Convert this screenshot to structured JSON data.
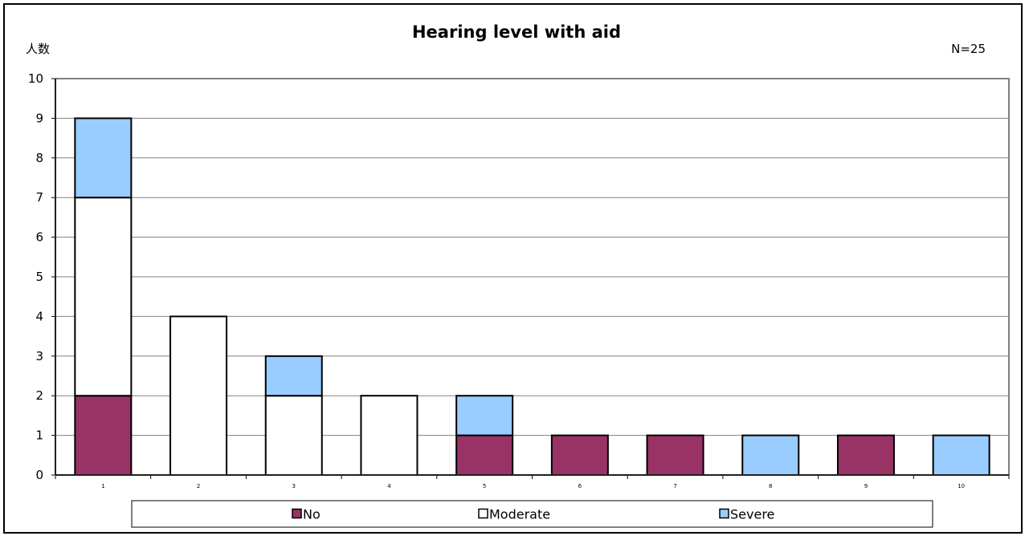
{
  "chart_data": {
    "type": "bar",
    "stacked": true,
    "title": "Hearing level with aid",
    "ylabel": "人数",
    "note": "N=25",
    "categories": [
      "1",
      "2",
      "3",
      "4",
      "5",
      "6",
      "7",
      "8",
      "9",
      "10"
    ],
    "series": [
      {
        "name": "No",
        "color": "#993366",
        "values": [
          2,
          0,
          0,
          0,
          1,
          1,
          1,
          0,
          1,
          0
        ]
      },
      {
        "name": "Moderate",
        "color": "#ffffff",
        "values": [
          5,
          4,
          2,
          2,
          0,
          0,
          0,
          0,
          0,
          0
        ]
      },
      {
        "name": "Severe",
        "color": "#99ccff",
        "values": [
          2,
          0,
          1,
          0,
          1,
          0,
          0,
          1,
          0,
          1
        ]
      }
    ],
    "ylim": [
      0,
      10
    ],
    "yticks": [
      "0",
      "1",
      "2",
      "3",
      "4",
      "5",
      "6",
      "7",
      "8",
      "9",
      "10"
    ],
    "grid": true,
    "legend_position": "bottom"
  }
}
